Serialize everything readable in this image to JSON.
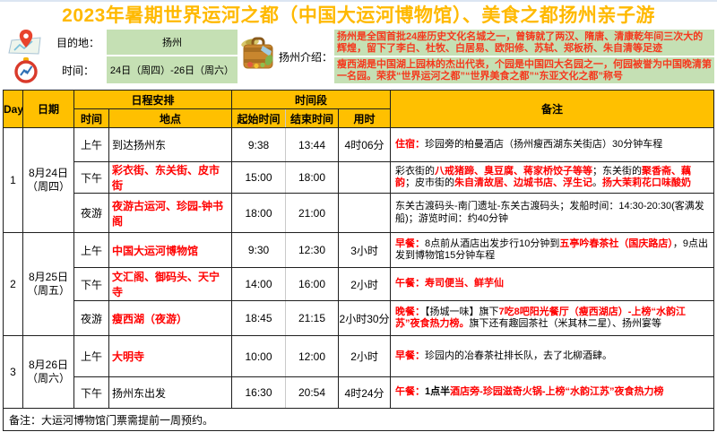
{
  "colors": {
    "accent": "#FFC000",
    "title": "#FFB900",
    "highlight_red": "#FF0000",
    "cell_green": "#C5E0B4"
  },
  "title": "2023年暑期世界运河之都（中国大运河博物馆）、美食之都扬州亲子游",
  "info": {
    "destination_label": "目的地：",
    "destination_value": "扬州",
    "time_label": "时间：",
    "time_value": "24日（周四）-26日（周六）",
    "intro_label": "扬州介绍：",
    "intro_line1": "扬州是全国首批24座历史文化名城之一，曾铸就了两汉、隋唐、清康乾年间三次大的辉煌，留下了李白、杜牧、白居易、欧阳修、苏轼、郑板桥、朱自清等足迹",
    "intro_line2": "瘦西湖是中国湖上园林的杰出代表，个园是中国四大名园之一，何园被誉为中国晚清第一名园。荣获“世界运河之都”“世界美食之都”“东亚文化之都”称号",
    "icons": [
      "map-pin-icon",
      "compass-clock-icon",
      "suitcase-icon"
    ]
  },
  "table": {
    "headers": {
      "day": "Day",
      "date": "日期",
      "schedule": "日程安排",
      "schedule_time": "时间",
      "schedule_place": "地点",
      "period": "时间段",
      "start": "起始时间",
      "end": "结束时间",
      "duration": "用时",
      "remark": "备注"
    },
    "days": [
      {
        "day": "1",
        "date1": "8月24日",
        "date2": "（周四）",
        "rows": [
          {
            "slot": "上午",
            "location": [
              {
                "t": "到达扬州东"
              }
            ],
            "start": "9:38",
            "end": "13:44",
            "duration": "4时06分",
            "remark": [
              {
                "t": "住宿：",
                "c": "red",
                "b": true
              },
              {
                "t": "珍园旁的柏曼酒店（扬州瘦西湖东关街店）30分钟车程"
              }
            ]
          },
          {
            "slot": "下午",
            "location": [
              {
                "t": "彩衣街、东关街、皮市街",
                "c": "red",
                "b": true
              }
            ],
            "start": "15:00",
            "end": "18:00",
            "duration": "",
            "remark": [
              {
                "t": "彩衣街的"
              },
              {
                "t": "八戒猪蹄、臭豆腐、蒋家桥饺子等等",
                "c": "red",
                "b": true
              },
              {
                "t": "；东关街的"
              },
              {
                "t": "聚香斋、藕韵",
                "c": "red",
                "b": true
              },
              {
                "t": "；皮市街的"
              },
              {
                "t": "朱自清故居、边城书店、浮生记",
                "c": "red",
                "b": true
              },
              {
                "t": "。"
              },
              {
                "t": "扬大茉莉花口味酸奶",
                "c": "red",
                "b": true
              }
            ]
          },
          {
            "slot": "夜游",
            "location": [
              {
                "t": "夜游古运河、珍园-钟书阁",
                "c": "red",
                "b": true
              }
            ],
            "start": "18:00",
            "end": "21:00",
            "duration": "",
            "remark": [
              {
                "t": "东关古渡码头-南门遗址-东关古渡码头；发船时间：14:30-20:30(客满发船)；游览时间：约40分钟"
              }
            ]
          }
        ]
      },
      {
        "day": "2",
        "date1": "8月25日",
        "date2": "（周五）",
        "rows": [
          {
            "slot": "上午",
            "location": [
              {
                "t": "中国大运河博物馆",
                "c": "red",
                "b": true
              }
            ],
            "start": "9:30",
            "end": "12:30",
            "duration": "3小时",
            "remark": [
              {
                "t": "早餐：",
                "c": "red",
                "b": true
              },
              {
                "t": "8点前从酒店出发步行10分钟到"
              },
              {
                "t": "五亭吟春茶社（国庆路店）",
                "c": "red",
                "b": true
              },
              {
                "t": "，9点出发到博物馆15分钟车程"
              }
            ]
          },
          {
            "slot": "下午",
            "location": [
              {
                "t": "文汇阁、御码头、天宁寺",
                "c": "red",
                "b": true
              }
            ],
            "start": "14:00",
            "end": "16:00",
            "duration": "2小时",
            "remark": [
              {
                "t": "午餐：寿司便当、鲜芋仙",
                "c": "red",
                "b": true
              }
            ]
          },
          {
            "slot": "夜游",
            "location": [
              {
                "t": "瘦西湖（夜游）",
                "c": "red",
                "b": true
              }
            ],
            "start": "18:45",
            "end": "21:15",
            "duration": "2小时30分",
            "remark": [
              {
                "t": "晚餐：",
                "c": "red",
                "b": true
              },
              {
                "t": "【扬城一味】旗下"
              },
              {
                "t": "7吃8吧阳光餐厅（瘦西湖店）-上榜“水韵江苏”夜食热力榜。",
                "c": "red",
                "b": true
              },
              {
                "t": "旗下还有趣园茶社（米其林二星）、扬州宴等"
              }
            ]
          }
        ]
      },
      {
        "day": "3",
        "date1": "8月26日",
        "date2": "（周六）",
        "rows": [
          {
            "slot": "上午",
            "location": [
              {
                "t": "大明寺",
                "c": "red",
                "b": true
              }
            ],
            "start": "10:00",
            "end": "12:00",
            "duration": "2小时",
            "remark": [
              {
                "t": "早餐：",
                "c": "red",
                "b": true
              },
              {
                "t": "珍园内的冶春茶社排长队，去了北柳酒肆。"
              }
            ]
          },
          {
            "slot": "下午",
            "location": [
              {
                "t": "扬州东出发"
              }
            ],
            "start": "16:30",
            "end": "20:54",
            "duration": "4时24分",
            "remark": [
              {
                "t": "午餐：",
                "c": "red",
                "b": true
              },
              {
                "t": "1点半",
                "b": true
              },
              {
                "t": "酒店旁-珍园滋奇火锅-上榜“水韵江苏”夜食热力榜",
                "c": "red",
                "b": true
              }
            ]
          }
        ]
      }
    ]
  },
  "footer_note": "备注：大运河博物馆门票需提前一周预约。"
}
